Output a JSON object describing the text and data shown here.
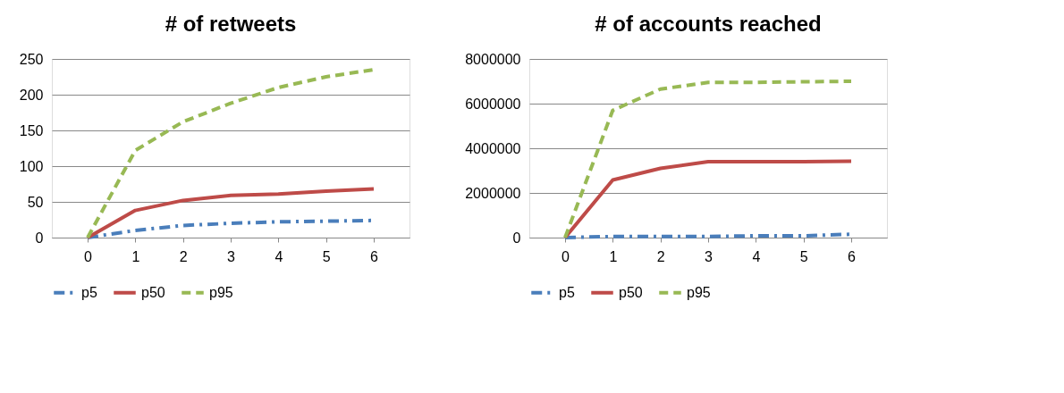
{
  "chart_data": [
    {
      "type": "line",
      "title": "# of retweets",
      "categories": [
        "0",
        "1",
        "2",
        "3",
        "4",
        "5",
        "6"
      ],
      "ylim": [
        0,
        250
      ],
      "yticks": [
        0,
        50,
        100,
        150,
        200,
        250
      ],
      "grid": "y",
      "legend": "bottom",
      "marker": "none",
      "series": [
        {
          "name": "p5",
          "color": "#4a7ebb",
          "line_style": "dashdot",
          "values": [
            0,
            10,
            17,
            20,
            22,
            23,
            24
          ]
        },
        {
          "name": "p50",
          "color": "#be4b48",
          "line_style": "solid",
          "values": [
            0,
            38,
            52,
            59,
            61,
            65,
            68
          ]
        },
        {
          "name": "p95",
          "color": "#98b954",
          "line_style": "dashed",
          "values": [
            0,
            122,
            162,
            188,
            210,
            225,
            235
          ]
        }
      ]
    },
    {
      "type": "line",
      "title": "# of accounts reached",
      "categories": [
        "0",
        "1",
        "2",
        "3",
        "4",
        "5",
        "6"
      ],
      "ylim": [
        0,
        8000000
      ],
      "yticks": [
        0,
        2000000,
        4000000,
        6000000,
        8000000
      ],
      "grid": "y",
      "legend": "bottom",
      "marker": "none",
      "series": [
        {
          "name": "p5",
          "color": "#4a7ebb",
          "line_style": "dashdot",
          "values": [
            0,
            50000,
            50000,
            50000,
            80000,
            80000,
            150000
          ]
        },
        {
          "name": "p50",
          "color": "#be4b48",
          "line_style": "solid",
          "values": [
            0,
            2580000,
            3100000,
            3400000,
            3400000,
            3400000,
            3420000
          ]
        },
        {
          "name": "p95",
          "color": "#98b954",
          "line_style": "dashed",
          "values": [
            0,
            5700000,
            6650000,
            6950000,
            6950000,
            6980000,
            7000000
          ]
        }
      ]
    }
  ]
}
